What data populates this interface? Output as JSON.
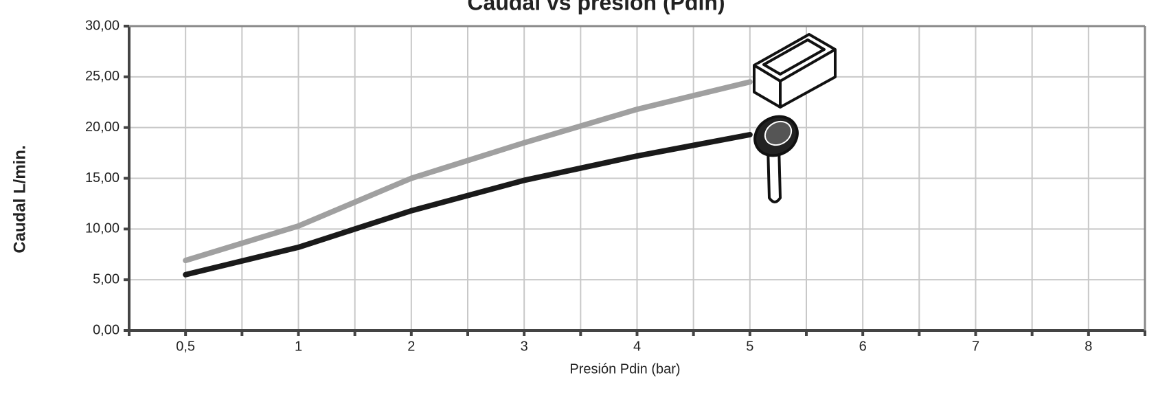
{
  "chart_data": {
    "type": "line",
    "title": "Caudal vs presión (Pdin)",
    "x_label": "Presión Pdin (bar)",
    "y_label": "Caudal L/min.",
    "categories": [
      "0,5",
      "1",
      "2",
      "3",
      "4",
      "5",
      "6",
      "7",
      "8"
    ],
    "series": [
      {
        "name": "Bañera",
        "color": "#a0a0a0",
        "values": [
          6.9,
          10.3,
          15.0,
          18.5,
          21.8,
          24.5,
          null,
          null,
          null
        ]
      },
      {
        "name": "Ducha",
        "color": "#1a1a1a",
        "values": [
          5.5,
          8.2,
          11.8,
          14.8,
          17.2,
          19.3,
          null,
          null,
          null
        ]
      }
    ],
    "ylim": [
      0,
      30
    ],
    "yticks": [
      {
        "value": 0,
        "label": "0,00"
      },
      {
        "value": 5,
        "label": "5,00"
      },
      {
        "value": 10,
        "label": "10,00"
      },
      {
        "value": 15,
        "label": "15,00"
      },
      {
        "value": 20,
        "label": "20,00"
      },
      {
        "value": 25,
        "label": "25,00"
      },
      {
        "value": 30,
        "label": "30,00"
      }
    ],
    "grid": true
  }
}
